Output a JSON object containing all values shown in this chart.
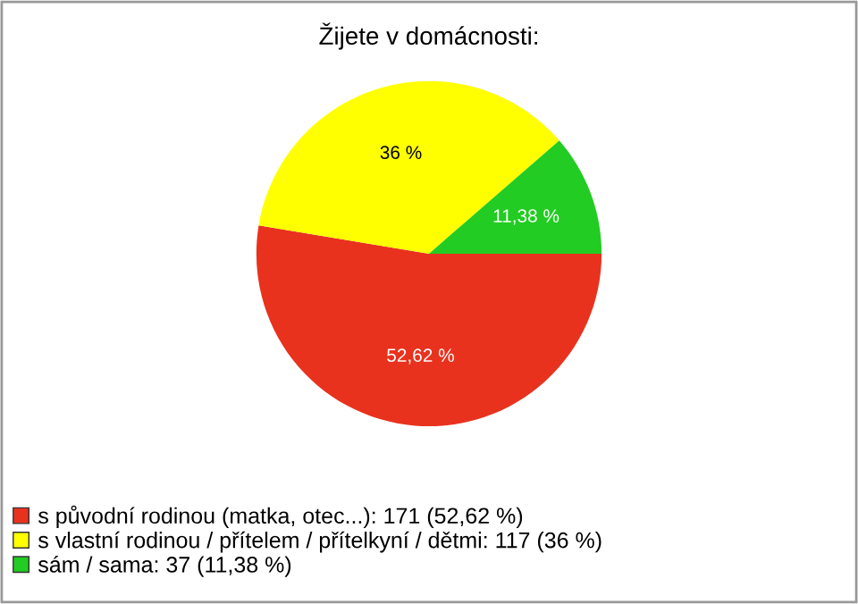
{
  "chart_data": {
    "type": "pie",
    "title": "Žijete v domácnosti:",
    "categories": [
      "s původní rodinou (matka, otec...): 171 (52,62 %)",
      "s vlastní rodinou / přítelem / přítelkyní / dětmi: 117 (36 %)",
      "sám / sama: 37 (11,38 %)"
    ],
    "values": [
      52.62,
      36,
      11.38
    ],
    "colors": [
      "#e8321e",
      "#ffff00",
      "#22cc22"
    ],
    "value_labels": [
      "52,62 %",
      "36 %",
      "11,38 %"
    ],
    "legend": "bottom left"
  }
}
